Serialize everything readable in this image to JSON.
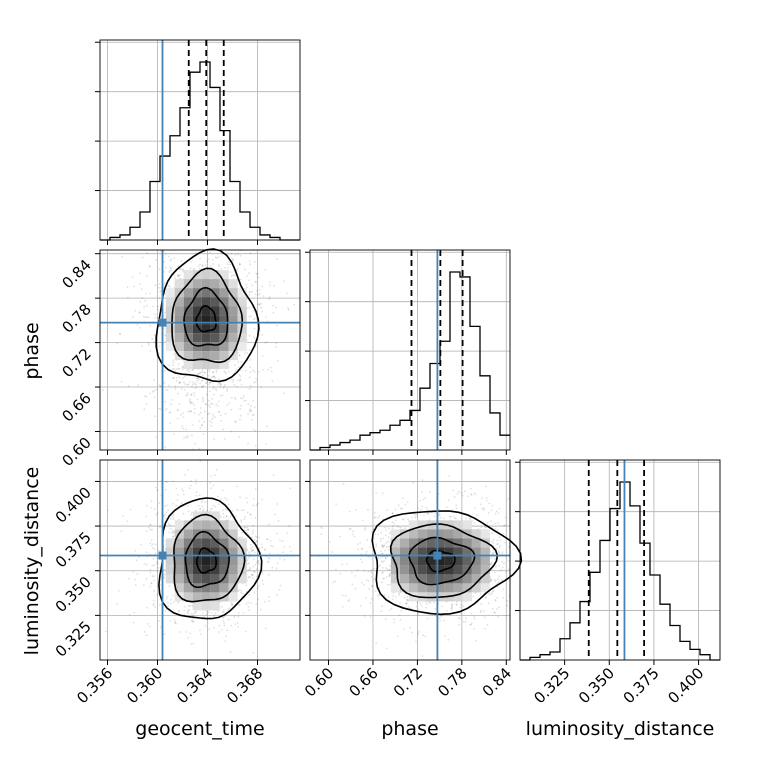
{
  "chart_data": {
    "type": "corner",
    "parameters": [
      "geocent_time",
      "phase",
      "luminosity_distance"
    ],
    "axis_labels": [
      "geocent_time",
      "phase",
      "luminosity_distance"
    ],
    "truths": [
      0.3604,
      0.747,
      0.3585
    ],
    "truth_color": "#4682b4",
    "ranges": [
      [
        0.3554,
        0.3714
      ],
      [
        0.575,
        0.845
      ],
      [
        0.3,
        0.412
      ]
    ],
    "ticks": [
      [
        "0.356",
        "0.360",
        "0.364",
        "0.368"
      ],
      [
        "0.60",
        "0.66",
        "0.72",
        "0.78",
        "0.84"
      ],
      [
        "0.325",
        "0.350",
        "0.375",
        "0.400"
      ]
    ],
    "grid": true,
    "quantiles": [
      [
        0.3625,
        0.3639,
        0.3653
      ],
      [
        0.712,
        0.751,
        0.781
      ],
      [
        0.3385,
        0.3545,
        0.3695
      ]
    ],
    "histograms": [
      {
        "edges_start": 0.3554,
        "bin_width": 0.0008,
        "counts": [
          0,
          1,
          2,
          5,
          11,
          23,
          33,
          41,
          52,
          66,
          70,
          60,
          43,
          23,
          11,
          5,
          2,
          1,
          0,
          0
        ]
      },
      {
        "edges_start": 0.575,
        "bin_width": 0.0135,
        "counts": [
          0,
          1,
          2,
          3,
          4,
          6,
          7,
          8,
          10,
          12,
          16,
          25,
          35,
          44,
          72,
          70,
          50,
          30,
          15,
          6
        ]
      },
      {
        "edges_start": 0.3,
        "bin_width": 0.0056,
        "counts": [
          0,
          1,
          2,
          3,
          8,
          14,
          22,
          33,
          45,
          57,
          67,
          58,
          44,
          32,
          21,
          13,
          7,
          4,
          2,
          0
        ]
      }
    ],
    "peaks_2d": [
      {
        "x_param": "geocent_time",
        "y_param": "phase",
        "center": [
          0.3639,
          0.751
        ]
      },
      {
        "x_param": "geocent_time",
        "y_param": "luminosity_distance",
        "center": [
          0.3639,
          0.3555
        ]
      },
      {
        "x_param": "phase",
        "y_param": "luminosity_distance",
        "center": [
          0.751,
          0.3555
        ]
      }
    ]
  }
}
